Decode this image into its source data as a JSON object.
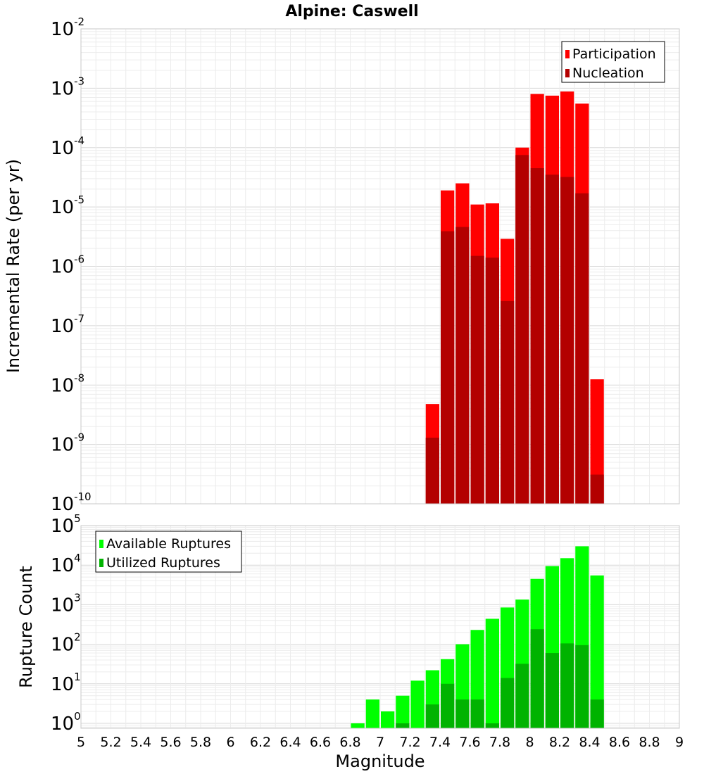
{
  "title": "Alpine: Caswell",
  "chart_data": [
    {
      "type": "bar",
      "ylabel": "Incremental Rate (per yr)",
      "yscale": "log",
      "ylim": [
        1e-10,
        0.01
      ],
      "ytick_exponents": [
        -10,
        -9,
        -8,
        -7,
        -6,
        -5,
        -4,
        -3,
        -2
      ],
      "x": [
        7.35,
        7.45,
        7.55,
        7.65,
        7.75,
        7.85,
        7.95,
        8.05,
        8.15,
        8.25,
        8.35,
        8.45
      ],
      "bar_width": 0.1,
      "legend_position": "top-right",
      "series": [
        {
          "name": "Participation",
          "color": "#ff0000",
          "values": [
            4.8e-09,
            1.9e-05,
            2.5e-05,
            1.1e-05,
            1.15e-05,
            2.9e-06,
            0.0001,
            0.0008,
            0.00075,
            0.00088,
            0.00055,
            1.25e-08
          ]
        },
        {
          "name": "Nucleation",
          "color": "#b30000",
          "values": [
            1.3e-09,
            3.9e-06,
            4.6e-06,
            1.5e-06,
            1.4e-06,
            2.6e-07,
            7.5e-05,
            4.5e-05,
            3.5e-05,
            3.2e-05,
            1.7e-05,
            3.1e-10
          ]
        }
      ]
    },
    {
      "type": "bar",
      "ylabel": "Rupture Count",
      "yscale": "log",
      "ylim": [
        0.75,
        100000.0
      ],
      "ytick_exponents": [
        0,
        1,
        2,
        3,
        4,
        5
      ],
      "xlabel": "Magnitude",
      "xlim": [
        5,
        9
      ],
      "xticks": [
        "5",
        "5.2",
        "5.4",
        "5.6",
        "5.8",
        "6",
        "6.2",
        "6.4",
        "6.6",
        "6.8",
        "7",
        "7.2",
        "7.4",
        "7.6",
        "7.8",
        "8",
        "8.2",
        "8.4",
        "8.6",
        "8.8",
        "9"
      ],
      "x": [
        6.85,
        6.95,
        7.05,
        7.15,
        7.25,
        7.35,
        7.45,
        7.55,
        7.65,
        7.75,
        7.85,
        7.95,
        8.05,
        8.15,
        8.25,
        8.35,
        8.45
      ],
      "bar_width": 0.1,
      "legend_position": "top-left",
      "series": [
        {
          "name": "Available Ruptures",
          "color": "#00ff00",
          "values": [
            1,
            4,
            2,
            5,
            12,
            22,
            42,
            100,
            230,
            440,
            850,
            1350,
            4500,
            9500,
            15000,
            30000,
            5500
          ]
        },
        {
          "name": "Utilized Ruptures",
          "color": "#00b300",
          "values": [
            0,
            0,
            0,
            1,
            0,
            3,
            10,
            4,
            4,
            1,
            14,
            32,
            240,
            60,
            105,
            95,
            4
          ]
        }
      ]
    }
  ]
}
